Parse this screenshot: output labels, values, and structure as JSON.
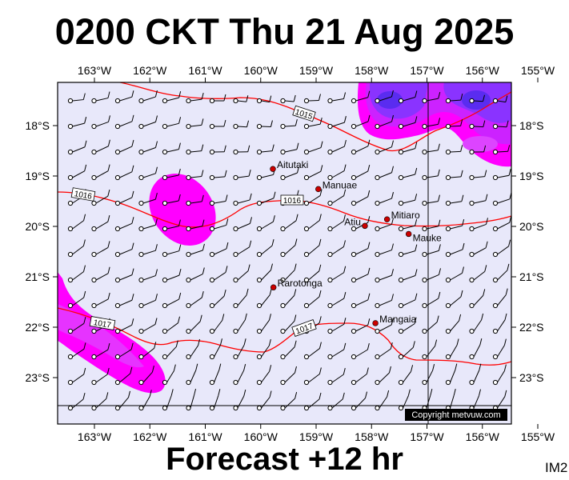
{
  "title": "0200 CKT Thu 21 Aug 2025",
  "footer": "Forecast +12 hr",
  "image_code": "IM2",
  "copyright": "Copyright metvuw.com",
  "longitude_labels": [
    "163°W",
    "162°W",
    "161°W",
    "160°W",
    "159°W",
    "158°W",
    "157°W",
    "156°W",
    "155°W"
  ],
  "latitude_labels": [
    "18°S",
    "19°S",
    "20°S",
    "21°S",
    "22°S",
    "23°S"
  ],
  "towns": [
    {
      "name": "Aitutaki",
      "lon": -159.78,
      "lat": -18.86
    },
    {
      "name": "Manuae",
      "lon": -158.96,
      "lat": -19.26
    },
    {
      "name": "Atiu",
      "lon": -158.12,
      "lat": -19.99
    },
    {
      "name": "Mitiaro",
      "lon": -157.72,
      "lat": -19.86
    },
    {
      "name": "Mauke",
      "lon": -157.33,
      "lat": -20.15
    },
    {
      "name": "Rarotonga",
      "lon": -159.77,
      "lat": -21.21
    },
    {
      "name": "Mangaia",
      "lon": -157.93,
      "lat": -21.92
    }
  ],
  "isobars": [
    {
      "label": "1015"
    },
    {
      "label": "1016"
    },
    {
      "label": "1016"
    },
    {
      "label": "1017"
    },
    {
      "label": "1017"
    }
  ],
  "colors": {
    "ocean": "#e8e8fa",
    "isobar": "#ff0000",
    "rain_light": "#ff00ff",
    "rain_medium": "#b400ff",
    "rain_heavy": "#6a20ff",
    "town": "#cc0000",
    "border": "#000000",
    "copyright_bg": "#000000"
  }
}
